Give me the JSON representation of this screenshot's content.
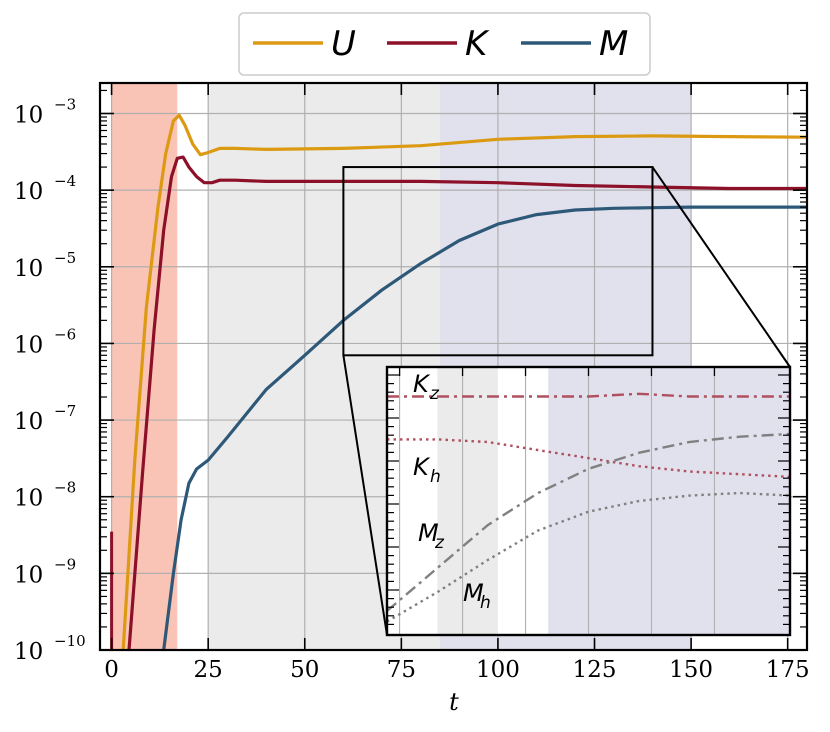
{
  "chart_data": {
    "type": "line",
    "xlabel": "t",
    "ylabel": "",
    "xlim": [
      -3,
      180
    ],
    "ylim": [
      1e-10,
      0.0025
    ],
    "yscale": "log",
    "grid": true,
    "legend_placement": "top-center",
    "x_ticks": [
      0,
      25,
      50,
      75,
      100,
      125,
      150,
      175
    ],
    "y_ticks": [
      {
        "base": "10",
        "exp": "−10",
        "value": -10
      },
      {
        "base": "10",
        "exp": "−9",
        "value": -9
      },
      {
        "base": "10",
        "exp": "−8",
        "value": -8
      },
      {
        "base": "10",
        "exp": "−7",
        "value": -7
      },
      {
        "base": "10",
        "exp": "−6",
        "value": -6
      },
      {
        "base": "10",
        "exp": "−5",
        "value": -5
      },
      {
        "base": "10",
        "exp": "−4",
        "value": -4
      },
      {
        "base": "10",
        "exp": "−3",
        "value": -3
      }
    ],
    "shaded_regions": [
      {
        "x0": 0,
        "x1": 17,
        "color": "#f9c3b5"
      },
      {
        "x0": 25,
        "x1": 85,
        "color": "#ebebeb"
      },
      {
        "x0": 85,
        "x1": 150,
        "color": "#e1e1ed"
      }
    ],
    "series": [
      {
        "name": "U",
        "color": "#dc9a12",
        "x": [
          3,
          6,
          9,
          12,
          14,
          16,
          17.5,
          19,
          21,
          23,
          25,
          28,
          32,
          40,
          60,
          80,
          100,
          120,
          140,
          160,
          180
        ],
        "y": [
          1e-10,
          3e-08,
          3e-06,
          6e-05,
          0.0003,
          0.0008,
          0.00095,
          0.0007,
          0.0004,
          0.00029,
          0.00031,
          0.00035,
          0.00035,
          0.00034,
          0.00035,
          0.00038,
          0.00046,
          0.0005,
          0.00051,
          0.0005,
          0.00049
        ]
      },
      {
        "name": "K",
        "color": "#8c1028",
        "x": [
          4.5,
          8,
          11,
          13.5,
          15.5,
          17,
          18.5,
          20,
          22,
          24,
          26,
          28,
          32,
          40,
          60,
          80,
          100,
          120,
          140,
          160,
          180
        ],
        "y": [
          1e-10,
          2e-08,
          1.5e-06,
          3e-05,
          0.00015,
          0.00026,
          0.00027,
          0.0002,
          0.00015,
          0.000125,
          0.000125,
          0.000135,
          0.000135,
          0.00013,
          0.00013,
          0.00013,
          0.000125,
          0.000115,
          0.00011,
          0.000105,
          0.000105
        ]
      },
      {
        "name": "M",
        "color": "#2e5878",
        "x": [
          13.5,
          16,
          18,
          20,
          22,
          25,
          30,
          40,
          50,
          60,
          70,
          80,
          90,
          100,
          110,
          120,
          130,
          140,
          150,
          160,
          180
        ],
        "y": [
          1e-10,
          1e-09,
          5e-09,
          1.5e-08,
          2.3e-08,
          3e-08,
          6e-08,
          2.5e-07,
          7e-07,
          2e-06,
          5e-06,
          1.1e-05,
          2.2e-05,
          3.6e-05,
          4.8e-05,
          5.5e-05,
          5.8e-05,
          5.9e-05,
          6e-05,
          6e-05,
          6e-05
        ]
      }
    ],
    "zoom_box": {
      "x0": 60,
      "x1": 140,
      "y0": 7e-07,
      "y1": 0.0002
    },
    "inset": {
      "labels": [
        {
          "base": "K",
          "sub": "z"
        },
        {
          "base": "K",
          "sub": "h"
        },
        {
          "base": "M",
          "sub": "z"
        },
        {
          "base": "M",
          "sub": "h"
        }
      ],
      "shaded_regions": [
        {
          "x0": 70,
          "x1": 82,
          "color": "#ebebeb"
        },
        {
          "x0": 92,
          "x1": 140,
          "color": "#e1e1ed"
        }
      ],
      "series": [
        {
          "color": "#b0505f",
          "style": "dashdot",
          "x": [
            60,
            80,
            100,
            110,
            120,
            130,
            140
          ],
          "y": [
            0.89,
            0.89,
            0.89,
            0.9,
            0.89,
            0.89,
            0.89
          ]
        },
        {
          "color": "#b0505f",
          "style": "dotted",
          "x": [
            60,
            70,
            80,
            90,
            100,
            110,
            120,
            130,
            140
          ],
          "y": [
            0.73,
            0.73,
            0.72,
            0.69,
            0.66,
            0.63,
            0.61,
            0.6,
            0.59
          ]
        },
        {
          "color": "#808080",
          "style": "dashdot",
          "x": [
            60,
            70,
            80,
            90,
            100,
            110,
            120,
            130,
            140
          ],
          "y": [
            0.09,
            0.25,
            0.41,
            0.53,
            0.62,
            0.68,
            0.72,
            0.74,
            0.75
          ]
        },
        {
          "color": "#808080",
          "style": "dotted",
          "x": [
            60,
            70,
            80,
            90,
            100,
            110,
            120,
            130,
            140
          ],
          "y": [
            0.05,
            0.16,
            0.28,
            0.39,
            0.46,
            0.5,
            0.52,
            0.53,
            0.52
          ]
        }
      ]
    }
  }
}
